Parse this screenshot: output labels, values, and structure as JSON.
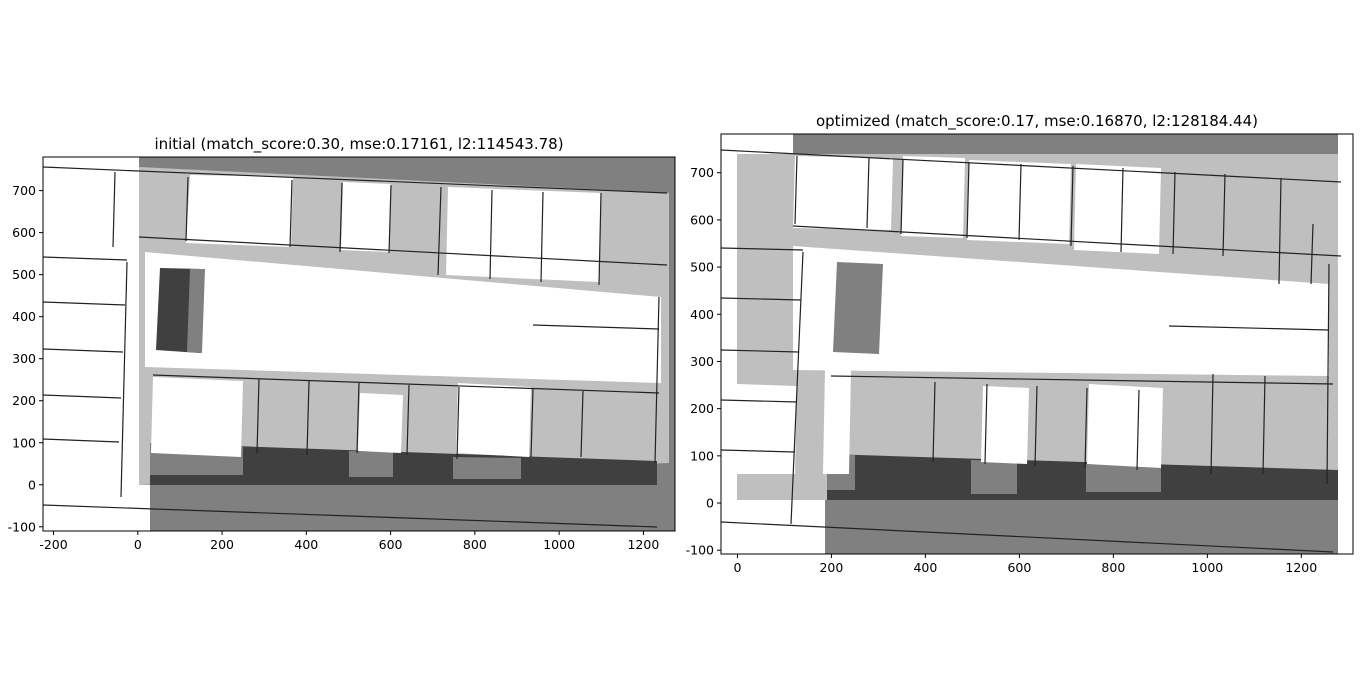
{
  "figure": {
    "background": "#ffffff"
  },
  "chart_data": [
    {
      "type": "heatmap",
      "title": "initial (match_score:0.30, mse:0.17161, l2:114543.78)",
      "match_score": 0.3,
      "mse": 0.17161,
      "l2": 114543.78,
      "xlim": [
        -225,
        1275
      ],
      "ylim": [
        -110,
        780
      ],
      "xticks": [
        -200,
        0,
        200,
        400,
        600,
        800,
        1000,
        1200
      ],
      "yticks": [
        -100,
        0,
        100,
        200,
        300,
        400,
        500,
        600,
        700
      ],
      "xlabel": "",
      "ylabel": "",
      "grid": false,
      "colors": {
        "free": "#ffffff",
        "occupied": "#bfbfbf",
        "unknown": "#808080",
        "overlap": "#404040",
        "wall": "#222222"
      }
    },
    {
      "type": "heatmap",
      "title": "optimized (match_score:0.17, mse:0.16870, l2:128184.44)",
      "match_score": 0.17,
      "mse": 0.1687,
      "l2": 128184.44,
      "xlim": [
        -35,
        1310
      ],
      "ylim": [
        -108,
        782
      ],
      "xticks": [
        0,
        200,
        400,
        600,
        800,
        1000,
        1200
      ],
      "yticks": [
        -100,
        0,
        100,
        200,
        300,
        400,
        500,
        600,
        700
      ],
      "xlabel": "",
      "ylabel": "",
      "grid": false,
      "colors": {
        "free": "#ffffff",
        "occupied": "#bfbfbf",
        "unknown": "#808080",
        "overlap": "#404040",
        "wall": "#222222"
      }
    }
  ]
}
